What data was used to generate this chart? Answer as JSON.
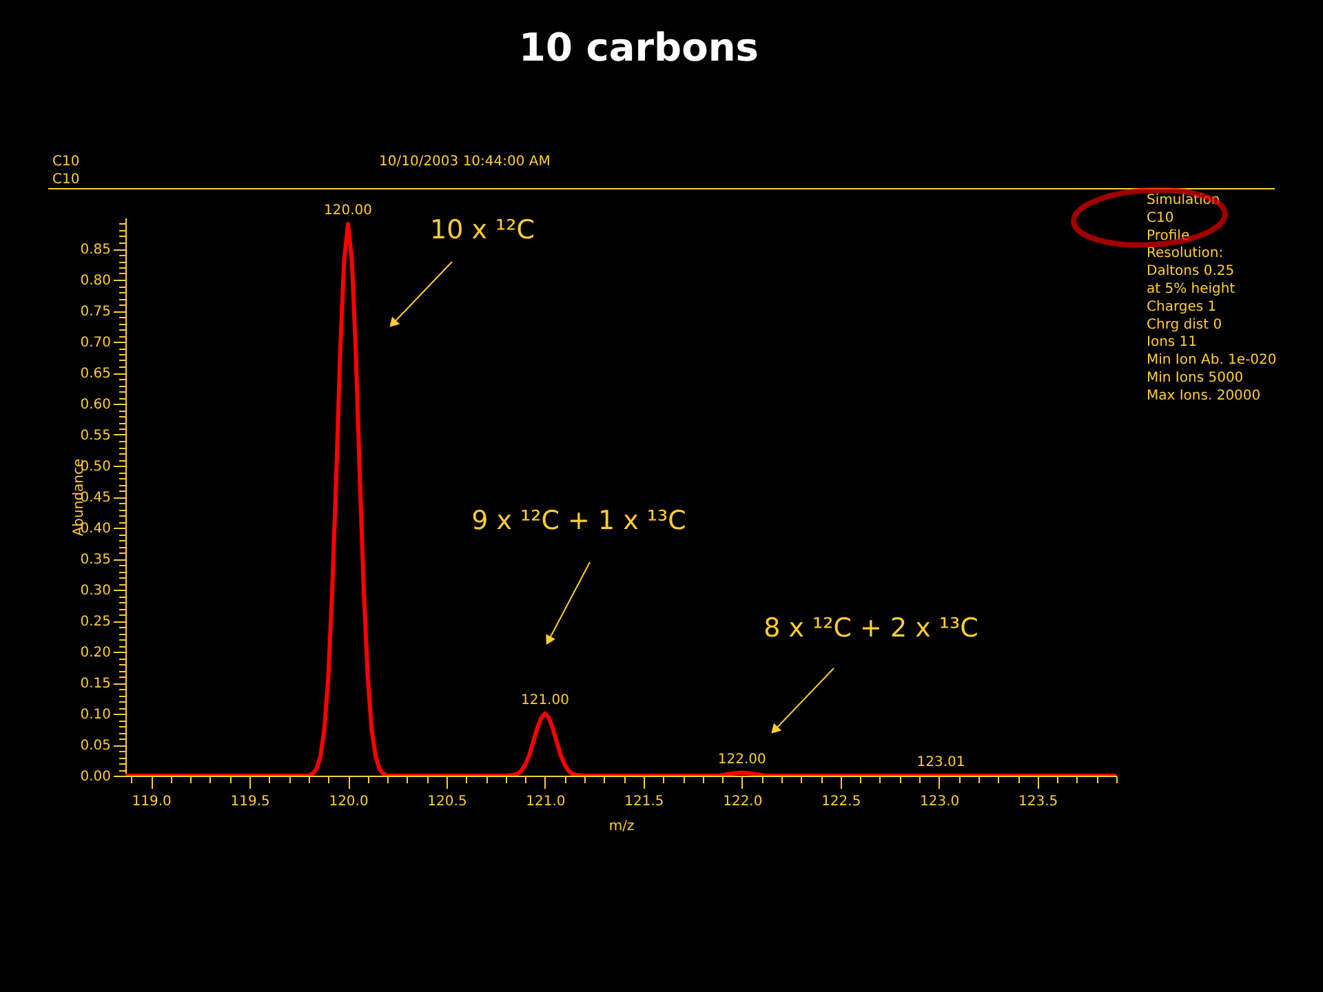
{
  "chart_data": {
    "type": "line",
    "title": "10 carbons",
    "xlabel": "m/z",
    "ylabel": "Abundance",
    "xlim": [
      118.87,
      123.9
    ],
    "ylim": [
      0,
      0.9
    ],
    "xticks": [
      {
        "value": 118.9,
        "label": null
      },
      {
        "value": 119.0,
        "label": "119.0"
      },
      {
        "value": 119.1,
        "label": null
      },
      {
        "value": 119.2,
        "label": null
      },
      {
        "value": 119.3,
        "label": null
      },
      {
        "value": 119.4,
        "label": null
      },
      {
        "value": 119.5,
        "label": "119.5"
      },
      {
        "value": 119.6,
        "label": null
      },
      {
        "value": 119.7,
        "label": null
      },
      {
        "value": 119.8,
        "label": null
      },
      {
        "value": 119.9,
        "label": null
      },
      {
        "value": 120.0,
        "label": "120.0"
      },
      {
        "value": 120.1,
        "label": null
      },
      {
        "value": 120.2,
        "label": null
      },
      {
        "value": 120.3,
        "label": null
      },
      {
        "value": 120.4,
        "label": null
      },
      {
        "value": 120.5,
        "label": "120.5"
      },
      {
        "value": 120.6,
        "label": null
      },
      {
        "value": 120.7,
        "label": null
      },
      {
        "value": 120.8,
        "label": null
      },
      {
        "value": 120.9,
        "label": null
      },
      {
        "value": 121.0,
        "label": "121.0"
      },
      {
        "value": 121.1,
        "label": null
      },
      {
        "value": 121.2,
        "label": null
      },
      {
        "value": 121.3,
        "label": null
      },
      {
        "value": 121.4,
        "label": null
      },
      {
        "value": 121.5,
        "label": "121.5"
      },
      {
        "value": 121.6,
        "label": null
      },
      {
        "value": 121.7,
        "label": null
      },
      {
        "value": 121.8,
        "label": null
      },
      {
        "value": 121.9,
        "label": null
      },
      {
        "value": 122.0,
        "label": "122.0"
      },
      {
        "value": 122.1,
        "label": null
      },
      {
        "value": 122.2,
        "label": null
      },
      {
        "value": 122.3,
        "label": null
      },
      {
        "value": 122.4,
        "label": null
      },
      {
        "value": 122.5,
        "label": "122.5"
      },
      {
        "value": 122.6,
        "label": null
      },
      {
        "value": 122.7,
        "label": null
      },
      {
        "value": 122.8,
        "label": null
      },
      {
        "value": 122.9,
        "label": null
      },
      {
        "value": 123.0,
        "label": "123.0"
      },
      {
        "value": 123.1,
        "label": null
      },
      {
        "value": 123.2,
        "label": null
      },
      {
        "value": 123.3,
        "label": null
      },
      {
        "value": 123.4,
        "label": null
      },
      {
        "value": 123.5,
        "label": "123.5"
      },
      {
        "value": 123.6,
        "label": null
      },
      {
        "value": 123.7,
        "label": null
      },
      {
        "value": 123.8,
        "label": null
      },
      {
        "value": 123.9,
        "label": null
      }
    ],
    "yticks": [
      {
        "value": 0,
        "label": "0.00"
      },
      {
        "value": 0.01,
        "label": null
      },
      {
        "value": 0.02,
        "label": null
      },
      {
        "value": 0.03,
        "label": null
      },
      {
        "value": 0.04,
        "label": null
      },
      {
        "value": 0.05,
        "label": "0.05"
      },
      {
        "value": 0.06,
        "label": null
      },
      {
        "value": 0.07,
        "label": null
      },
      {
        "value": 0.08,
        "label": null
      },
      {
        "value": 0.09,
        "label": null
      },
      {
        "value": 0.1,
        "label": "0.10"
      },
      {
        "value": 0.11,
        "label": null
      },
      {
        "value": 0.12,
        "label": null
      },
      {
        "value": 0.13,
        "label": null
      },
      {
        "value": 0.14,
        "label": null
      },
      {
        "value": 0.15,
        "label": "0.15"
      },
      {
        "value": 0.16,
        "label": null
      },
      {
        "value": 0.17,
        "label": null
      },
      {
        "value": 0.18,
        "label": null
      },
      {
        "value": 0.19,
        "label": null
      },
      {
        "value": 0.2,
        "label": "0.20"
      },
      {
        "value": 0.21,
        "label": null
      },
      {
        "value": 0.22,
        "label": null
      },
      {
        "value": 0.23,
        "label": null
      },
      {
        "value": 0.24,
        "label": null
      },
      {
        "value": 0.25,
        "label": "0.25"
      },
      {
        "value": 0.26,
        "label": null
      },
      {
        "value": 0.27,
        "label": null
      },
      {
        "value": 0.28,
        "label": null
      },
      {
        "value": 0.29,
        "label": null
      },
      {
        "value": 0.3,
        "label": "0.30"
      },
      {
        "value": 0.31,
        "label": null
      },
      {
        "value": 0.32,
        "label": null
      },
      {
        "value": 0.33,
        "label": null
      },
      {
        "value": 0.34,
        "label": null
      },
      {
        "value": 0.35,
        "label": "0.35"
      },
      {
        "value": 0.36,
        "label": null
      },
      {
        "value": 0.37,
        "label": null
      },
      {
        "value": 0.38,
        "label": null
      },
      {
        "value": 0.39,
        "label": null
      },
      {
        "value": 0.4,
        "label": "0.40"
      },
      {
        "value": 0.41,
        "label": null
      },
      {
        "value": 0.42,
        "label": null
      },
      {
        "value": 0.43,
        "label": null
      },
      {
        "value": 0.44,
        "label": null
      },
      {
        "value": 0.45,
        "label": "0.45"
      },
      {
        "value": 0.46,
        "label": null
      },
      {
        "value": 0.47,
        "label": null
      },
      {
        "value": 0.48,
        "label": null
      },
      {
        "value": 0.49,
        "label": null
      },
      {
        "value": 0.5,
        "label": "0.50"
      },
      {
        "value": 0.51,
        "label": null
      },
      {
        "value": 0.52,
        "label": null
      },
      {
        "value": 0.53,
        "label": null
      },
      {
        "value": 0.54,
        "label": null
      },
      {
        "value": 0.55,
        "label": "0.55"
      },
      {
        "value": 0.56,
        "label": null
      },
      {
        "value": 0.57,
        "label": null
      },
      {
        "value": 0.58,
        "label": null
      },
      {
        "value": 0.59,
        "label": null
      },
      {
        "value": 0.6,
        "label": "0.60"
      },
      {
        "value": 0.61,
        "label": null
      },
      {
        "value": 0.62,
        "label": null
      },
      {
        "value": 0.63,
        "label": null
      },
      {
        "value": 0.64,
        "label": null
      },
      {
        "value": 0.65,
        "label": "0.65"
      },
      {
        "value": 0.66,
        "label": null
      },
      {
        "value": 0.67,
        "label": null
      },
      {
        "value": 0.68,
        "label": null
      },
      {
        "value": 0.69,
        "label": null
      },
      {
        "value": 0.7,
        "label": "0.70"
      },
      {
        "value": 0.71,
        "label": null
      },
      {
        "value": 0.72,
        "label": null
      },
      {
        "value": 0.73,
        "label": null
      },
      {
        "value": 0.74,
        "label": null
      },
      {
        "value": 0.75,
        "label": "0.75"
      },
      {
        "value": 0.76,
        "label": null
      },
      {
        "value": 0.77,
        "label": null
      },
      {
        "value": 0.78,
        "label": null
      },
      {
        "value": 0.79,
        "label": null
      },
      {
        "value": 0.8,
        "label": "0.80"
      },
      {
        "value": 0.81,
        "label": null
      },
      {
        "value": 0.82,
        "label": null
      },
      {
        "value": 0.83,
        "label": null
      },
      {
        "value": 0.84,
        "label": null
      },
      {
        "value": 0.85,
        "label": "0.85"
      },
      {
        "value": 0.86,
        "label": null
      },
      {
        "value": 0.87,
        "label": null
      },
      {
        "value": 0.88,
        "label": null
      },
      {
        "value": 0.89,
        "label": null
      }
    ],
    "series": [
      {
        "color": "#ff0000",
        "x": [
          118.87,
          119.8,
          119.82,
          119.84,
          119.86,
          119.88,
          119.9,
          119.92,
          119.94,
          119.96,
          119.98,
          120.0,
          120.02,
          120.04,
          120.06,
          120.08,
          120.1,
          120.12,
          120.14,
          120.16,
          120.18,
          120.2,
          120.8,
          120.84,
          120.86,
          120.88,
          120.9,
          120.92,
          120.94,
          120.96,
          120.98,
          121.0,
          121.02,
          121.04,
          121.06,
          121.08,
          121.1,
          121.12,
          121.14,
          121.16,
          121.2,
          121.88,
          121.92,
          121.96,
          122.0,
          122.04,
          122.08,
          122.12,
          123.9
        ],
        "values": [
          0,
          0,
          0.003,
          0.011,
          0.031,
          0.075,
          0.16,
          0.3,
          0.48,
          0.68,
          0.83,
          0.89,
          0.83,
          0.68,
          0.48,
          0.3,
          0.16,
          0.075,
          0.031,
          0.011,
          0.003,
          0,
          0,
          0.001,
          0.003,
          0.008,
          0.018,
          0.033,
          0.054,
          0.076,
          0.093,
          0.1,
          0.093,
          0.076,
          0.054,
          0.033,
          0.018,
          0.008,
          0.003,
          0.001,
          0,
          0,
          0.002,
          0.004,
          0.005,
          0.004,
          0.002,
          0,
          0
        ]
      }
    ],
    "annotations": [
      "C10",
      "C10",
      "10/10/2003 10:44:00 AM",
      "Simulation",
      "C10",
      "Profile",
      "Resolution:",
      "Daltons 0.25",
      "at 5% height",
      "Charges  1",
      "Chrg dist  0",
      "Ions  11",
      "Min Ion Ab. 1e-020",
      "Min Ions 5000",
      "Max Ions. 20000",
      {
        "text": "120.00",
        "x": 120.0,
        "y": 0.89
      },
      {
        "text": "121.00",
        "x": 121.0,
        "y": 0.1
      },
      {
        "text": "122.00",
        "x": 122.0,
        "y": 0.005
      },
      {
        "text": "123.01",
        "x": 123.01,
        "y": 0
      },
      "10 x ¹²C",
      "9 x ¹²C + 1 x ¹³C",
      "8 x ¹²C + 2 x ¹³C"
    ],
    "grid": false,
    "marker": "none",
    "line_style": "solid"
  }
}
